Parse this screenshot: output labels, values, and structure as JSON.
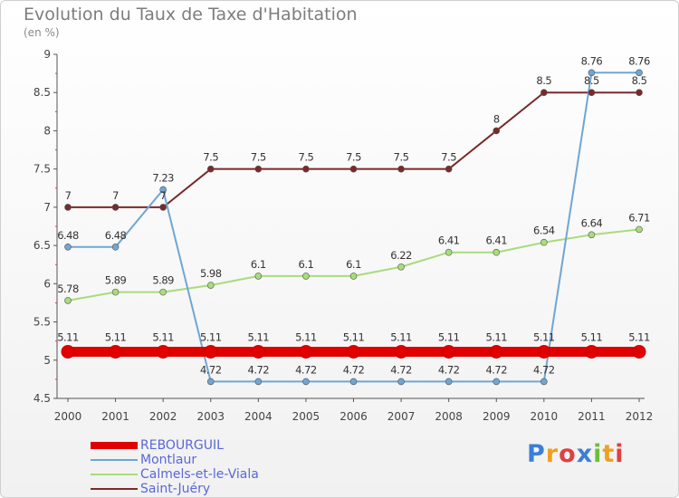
{
  "title": "Evolution du Taux de Taxe d'Habitation",
  "subtitle": "(en %)",
  "logo": "Proxiti",
  "chart_data": {
    "type": "line",
    "x": [
      "2000",
      "2001",
      "2002",
      "2003",
      "2004",
      "2005",
      "2006",
      "2007",
      "2008",
      "2009",
      "2010",
      "2011",
      "2012"
    ],
    "ylim": [
      4.5,
      9
    ],
    "yticks": [
      "4.5",
      "5",
      "5.5",
      "6",
      "6.5",
      "7",
      "7.5",
      "8",
      "8.5",
      "9"
    ],
    "grid": false,
    "legend_position": "bottom-left",
    "series": [
      {
        "name": "REBOURGUIL",
        "color": "#e00000",
        "values": [
          5.11,
          5.11,
          5.11,
          5.11,
          5.11,
          5.11,
          5.11,
          5.11,
          5.11,
          5.11,
          5.11,
          5.11,
          5.11
        ],
        "labels": [
          "5.11",
          "5.11",
          "5.11",
          "5.11",
          "5.11",
          "5.11",
          "5.11",
          "5.11",
          "5.11",
          "5.11",
          "5.11",
          "5.11",
          "5.11"
        ]
      },
      {
        "name": "Montlaur",
        "color": "#6fa6d4",
        "values": [
          6.48,
          6.48,
          7.23,
          4.72,
          4.72,
          4.72,
          4.72,
          4.72,
          4.72,
          4.72,
          4.72,
          8.76,
          8.76
        ],
        "labels": [
          "6.48",
          "6.48",
          "7.23",
          "4.72",
          "4.72",
          "4.72",
          "4.72",
          "4.72",
          "4.72",
          "4.72",
          "4.72",
          "8.76",
          "8.76"
        ]
      },
      {
        "name": "Calmels-et-le-Viala",
        "color": "#a8dc7c",
        "values": [
          5.78,
          5.89,
          5.89,
          5.98,
          6.1,
          6.1,
          6.1,
          6.22,
          6.41,
          6.41,
          6.54,
          6.64,
          6.71
        ],
        "labels": [
          "5.78",
          "5.89",
          "5.89",
          "5.98",
          "6.1",
          "6.1",
          "6.1",
          "6.22",
          "6.41",
          "6.41",
          "6.54",
          "6.64",
          "6.71"
        ]
      },
      {
        "name": "Saint-Juéry",
        "color": "#7a2a2a",
        "values": [
          7,
          7,
          7,
          7.5,
          7.5,
          7.5,
          7.5,
          7.5,
          7.5,
          8,
          8.5,
          8.5,
          8.5
        ],
        "labels": [
          "7",
          "7",
          "7",
          "7.5",
          "7.5",
          "7.5",
          "7.5",
          "7.5",
          "7.5",
          "8",
          "8.5",
          "8.5",
          "8.5"
        ]
      }
    ]
  }
}
